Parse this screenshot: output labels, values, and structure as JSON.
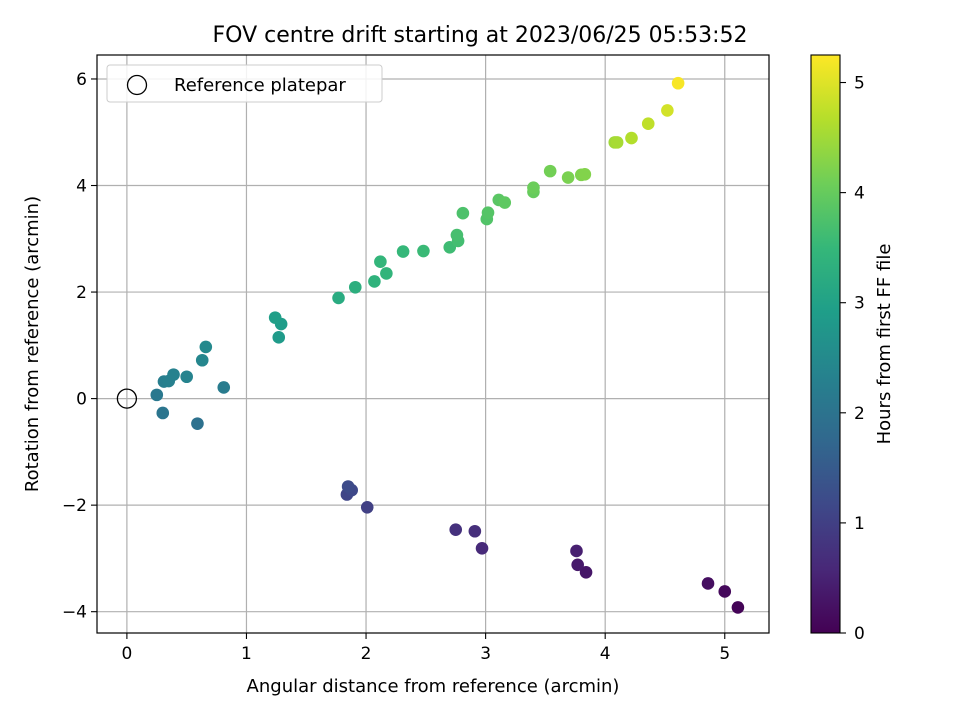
{
  "chart_data": {
    "type": "scatter",
    "title": "FOV centre drift starting at 2023/06/25 05:53:52",
    "xlabel": "Angular distance from reference (arcmin)",
    "ylabel": "Rotation from reference (arcmin)",
    "xlim": [
      -0.25,
      5.37
    ],
    "ylim": [
      -4.4,
      6.45
    ],
    "xticks": [
      0,
      1,
      2,
      3,
      4,
      5
    ],
    "yticks": [
      -4,
      -2,
      0,
      2,
      4,
      6
    ],
    "x_tick_labels": [
      "0",
      "1",
      "2",
      "3",
      "4",
      "5"
    ],
    "y_tick_labels": [
      "−4",
      "−2",
      "0",
      "2",
      "4",
      "6"
    ],
    "grid": true,
    "legend": {
      "placement": "top-left",
      "entries": [
        "Reference platepar"
      ]
    },
    "reference_point": {
      "x": 0,
      "y": 0
    },
    "colorbar": {
      "label": "Hours from first FF file",
      "range": [
        0,
        5.25
      ],
      "ticks": [
        0,
        1,
        2,
        3,
        4,
        5
      ],
      "tick_labels": [
        "0",
        "1",
        "2",
        "3",
        "4",
        "5"
      ],
      "colormap": [
        "#440154",
        "#482878",
        "#3e4989",
        "#31688e",
        "#26828e",
        "#1f9e89",
        "#35b779",
        "#6ece58",
        "#b5de2b",
        "#fde725"
      ]
    },
    "points": [
      {
        "x": 5.11,
        "y": -3.92,
        "t": 0.05
      },
      {
        "x": 5.0,
        "y": -3.62,
        "t": 0.12
      },
      {
        "x": 4.86,
        "y": -3.47,
        "t": 0.2
      },
      {
        "x": 3.84,
        "y": -3.26,
        "t": 0.32
      },
      {
        "x": 3.77,
        "y": -3.12,
        "t": 0.38
      },
      {
        "x": 3.76,
        "y": -2.86,
        "t": 0.45
      },
      {
        "x": 2.97,
        "y": -2.81,
        "t": 0.62
      },
      {
        "x": 2.91,
        "y": -2.49,
        "t": 0.7
      },
      {
        "x": 2.75,
        "y": -2.46,
        "t": 0.75
      },
      {
        "x": 2.01,
        "y": -2.04,
        "t": 1.0
      },
      {
        "x": 1.84,
        "y": -1.8,
        "t": 1.1
      },
      {
        "x": 1.88,
        "y": -1.72,
        "t": 1.15
      },
      {
        "x": 1.85,
        "y": -1.65,
        "t": 1.2
      },
      {
        "x": 0.59,
        "y": -0.47,
        "t": 1.95
      },
      {
        "x": 0.3,
        "y": -0.27,
        "t": 2.05
      },
      {
        "x": 0.25,
        "y": 0.07,
        "t": 2.12
      },
      {
        "x": 0.81,
        "y": 0.21,
        "t": 2.2
      },
      {
        "x": 0.31,
        "y": 0.32,
        "t": 2.25
      },
      {
        "x": 0.35,
        "y": 0.33,
        "t": 2.28
      },
      {
        "x": 0.39,
        "y": 0.45,
        "t": 2.32
      },
      {
        "x": 0.5,
        "y": 0.41,
        "t": 2.36
      },
      {
        "x": 0.63,
        "y": 0.72,
        "t": 2.42
      },
      {
        "x": 0.66,
        "y": 0.97,
        "t": 2.48
      },
      {
        "x": 1.27,
        "y": 1.15,
        "t": 2.85
      },
      {
        "x": 1.29,
        "y": 1.4,
        "t": 2.9
      },
      {
        "x": 1.24,
        "y": 1.52,
        "t": 2.95
      },
      {
        "x": 1.77,
        "y": 1.89,
        "t": 3.22
      },
      {
        "x": 1.91,
        "y": 2.09,
        "t": 3.3
      },
      {
        "x": 2.07,
        "y": 2.2,
        "t": 3.38
      },
      {
        "x": 2.17,
        "y": 2.35,
        "t": 3.42
      },
      {
        "x": 2.12,
        "y": 2.57,
        "t": 3.45
      },
      {
        "x": 2.31,
        "y": 2.76,
        "t": 3.5
      },
      {
        "x": 2.48,
        "y": 2.77,
        "t": 3.55
      },
      {
        "x": 2.7,
        "y": 2.84,
        "t": 3.6
      },
      {
        "x": 2.77,
        "y": 2.96,
        "t": 3.65
      },
      {
        "x": 2.76,
        "y": 3.07,
        "t": 3.68
      },
      {
        "x": 2.81,
        "y": 3.48,
        "t": 3.75
      },
      {
        "x": 3.01,
        "y": 3.37,
        "t": 3.8
      },
      {
        "x": 3.02,
        "y": 3.49,
        "t": 3.83
      },
      {
        "x": 3.11,
        "y": 3.73,
        "t": 3.88
      },
      {
        "x": 3.16,
        "y": 3.68,
        "t": 3.92
      },
      {
        "x": 3.4,
        "y": 3.88,
        "t": 4.0
      },
      {
        "x": 3.4,
        "y": 3.96,
        "t": 4.05
      },
      {
        "x": 3.54,
        "y": 4.27,
        "t": 4.12
      },
      {
        "x": 3.69,
        "y": 4.15,
        "t": 4.18
      },
      {
        "x": 3.8,
        "y": 4.2,
        "t": 4.22
      },
      {
        "x": 3.83,
        "y": 4.21,
        "t": 4.25
      },
      {
        "x": 4.08,
        "y": 4.81,
        "t": 4.5
      },
      {
        "x": 4.1,
        "y": 4.81,
        "t": 4.55
      },
      {
        "x": 4.22,
        "y": 4.89,
        "t": 4.65
      },
      {
        "x": 4.36,
        "y": 5.16,
        "t": 4.75
      },
      {
        "x": 4.52,
        "y": 5.41,
        "t": 4.9
      },
      {
        "x": 4.61,
        "y": 5.92,
        "t": 5.2
      }
    ]
  }
}
